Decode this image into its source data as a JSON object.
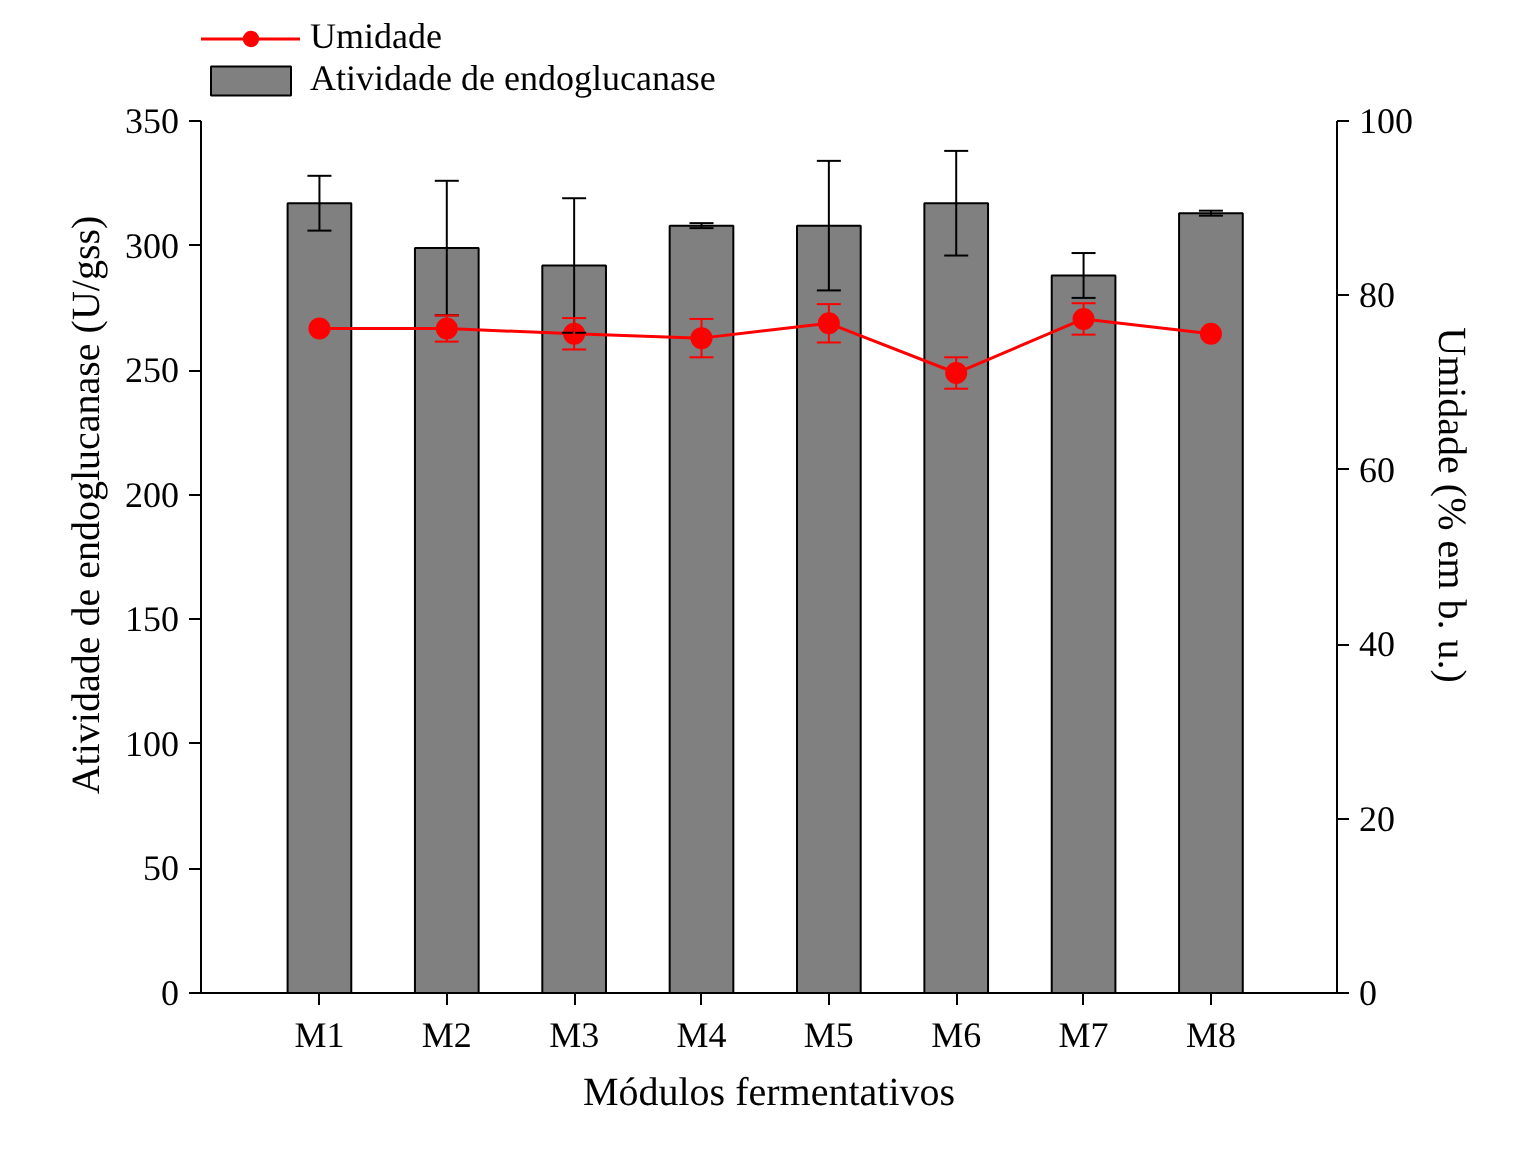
{
  "chart_data": {
    "type": "bar",
    "categories": [
      "M1",
      "M2",
      "M3",
      "M4",
      "M5",
      "M6",
      "M7",
      "M8"
    ],
    "xlabel": "Módulos fermentativos",
    "ylabel": "Atividade de endoglucanase (U/gss)",
    "y2label": "Umidade (% em b. u.)",
    "ylim": [
      0,
      350
    ],
    "yticks": [
      0,
      50,
      100,
      150,
      200,
      250,
      300,
      350
    ],
    "y2lim": [
      0,
      100
    ],
    "y2ticks": [
      0,
      20,
      40,
      60,
      80,
      100
    ],
    "grid": false,
    "legend": "top left",
    "series": [
      {
        "name": "Atividade de endoglucanase",
        "color": "#808080",
        "values": [
          317,
          299,
          292,
          308,
          308,
          317,
          288,
          313
        ],
        "errors": [
          11,
          27,
          27,
          1,
          26,
          21,
          9,
          1
        ]
      },
      {
        "name": "Umidade",
        "type": "line",
        "axis": "y2",
        "color": "#ff0000",
        "marker": "circle",
        "values": [
          76.2,
          76.2,
          75.6,
          75.1,
          76.8,
          71.1,
          77.3,
          75.6
        ],
        "errors": [
          null,
          1.5,
          1.8,
          2.2,
          2.2,
          1.8,
          1.8,
          null
        ]
      }
    ]
  }
}
